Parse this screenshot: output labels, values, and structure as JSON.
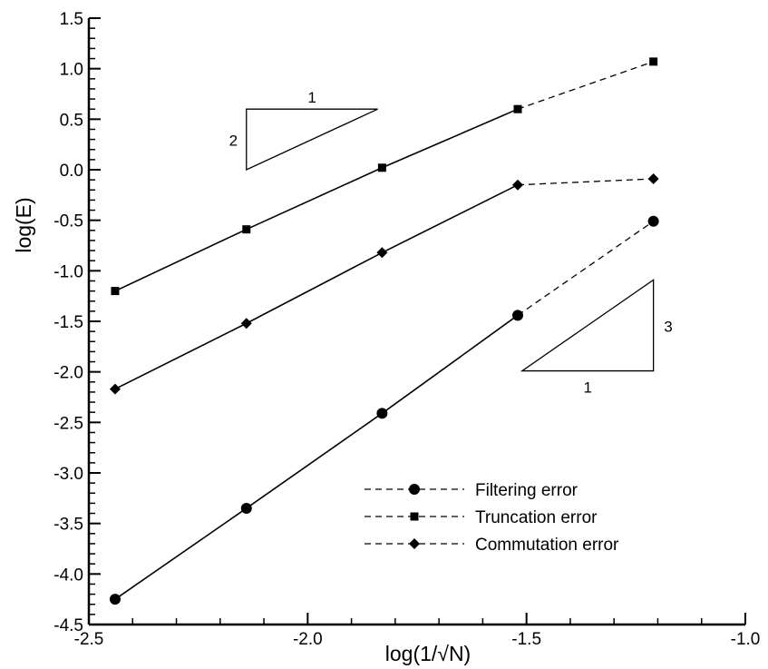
{
  "chart_data": {
    "type": "line",
    "xlabel": "log(1/√N)",
    "ylabel": "log(E)",
    "xlim": [
      -2.5,
      -1.0
    ],
    "ylim": [
      -4.5,
      1.5
    ],
    "x_ticks": [
      "-2.5",
      "-2.0",
      "-1.5",
      "-1.0"
    ],
    "y_ticks": [
      "1.5",
      "1.0",
      "0.5",
      "0.0",
      "-0.5",
      "-1.0",
      "-1.5",
      "-2.0",
      "-2.5",
      "-3.0",
      "-3.5",
      "-4.0",
      "-4.5"
    ],
    "x": [
      -2.44,
      -2.14,
      -1.83,
      -1.52,
      -1.21
    ],
    "grid": false,
    "legend_position": "bottom-right",
    "series": [
      {
        "name": "Filtering error",
        "marker": "circle",
        "values": [
          -4.25,
          -3.35,
          -2.41,
          -1.44,
          -0.51
        ]
      },
      {
        "name": "Truncation error",
        "marker": "square",
        "values": [
          -1.2,
          -0.59,
          0.02,
          0.6,
          1.07
        ]
      },
      {
        "name": "Commutation error",
        "marker": "diamond",
        "values": [
          -2.17,
          -1.52,
          -0.82,
          -0.15,
          -0.09
        ]
      }
    ],
    "slope_triangles": [
      {
        "rise_label": "2",
        "run_label": "1"
      },
      {
        "rise_label": "3",
        "run_label": "1"
      }
    ]
  }
}
